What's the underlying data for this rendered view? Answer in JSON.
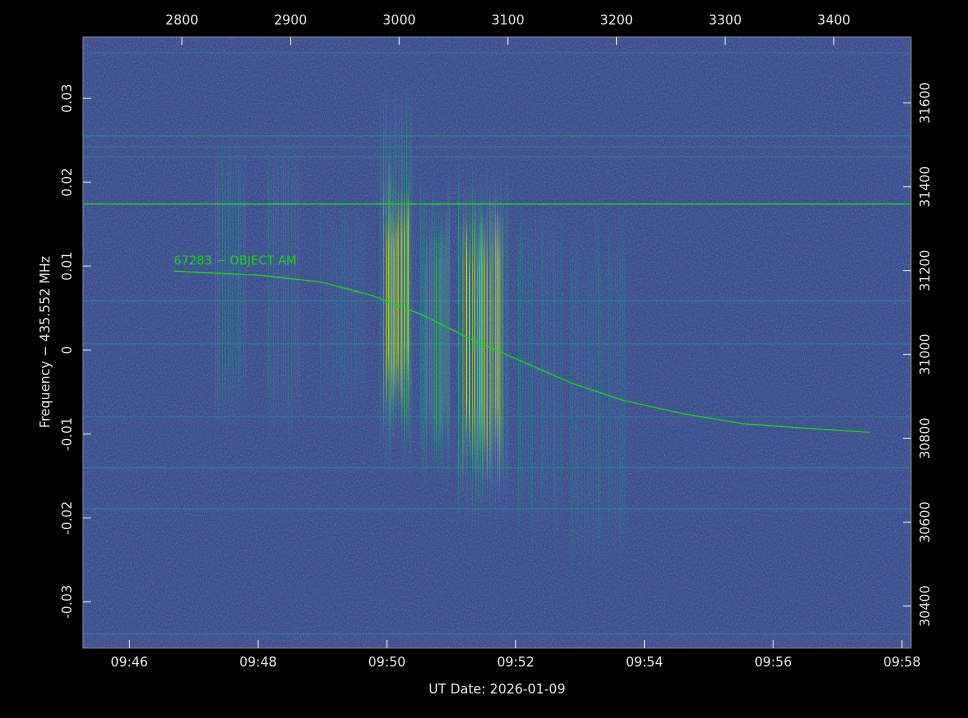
{
  "chart_data": {
    "type": "spectrogram",
    "xlabel": "UT Date: 2026-01-09",
    "ylabel": "Frequency − 435.552 MHz",
    "xlim": [
      45.28,
      58.14
    ],
    "xticks": [
      {
        "value": 46,
        "label": "09:46"
      },
      {
        "value": 48,
        "label": "09:48"
      },
      {
        "value": 50,
        "label": "09:50"
      },
      {
        "value": 52,
        "label": "09:52"
      },
      {
        "value": 54,
        "label": "09:54"
      },
      {
        "value": 56,
        "label": "09:56"
      },
      {
        "value": 58,
        "label": "09:58"
      }
    ],
    "x2lim": [
      2709,
      3471
    ],
    "x2ticks": [
      2800,
      2900,
      3000,
      3100,
      3200,
      3300,
      3400
    ],
    "ylim": [
      -0.0355,
      0.0373
    ],
    "yticks": [
      0.03,
      0.02,
      0.01,
      0,
      -0.01,
      -0.02,
      -0.03
    ],
    "y2lim": [
      30300,
      31757
    ],
    "y2ticks": [
      30400,
      30600,
      30800,
      31000,
      31200,
      31400,
      31600
    ],
    "series": [
      {
        "name": "67283 − OBJECT AM",
        "color": "#19d219",
        "x": [
          46.69,
          48.05,
          48.98,
          49.77,
          50.55,
          51.33,
          52.11,
          52.89,
          53.67,
          54.61,
          55.55,
          56.48,
          57.5
        ],
        "values": [
          0.0094,
          0.0089,
          0.0081,
          0.0065,
          0.0042,
          0.0012,
          -0.0014,
          -0.004,
          -0.006,
          -0.0076,
          -0.0088,
          -0.0093,
          -0.0098
        ]
      },
      {
        "color": "#19d219",
        "x": [
          45.28,
          58.14
        ],
        "values": [
          0.0174,
          0.0174
        ]
      }
    ]
  }
}
